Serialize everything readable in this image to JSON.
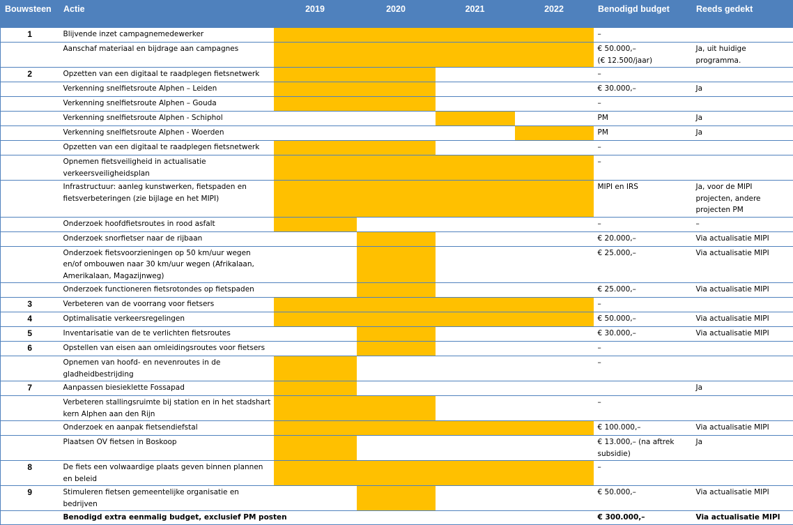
{
  "colors": {
    "header_bg": "#4f81bd",
    "bar_fill": "#ffc000",
    "rule": "#4f81bd"
  },
  "header": {
    "bouwsteen": "Bouwsteen",
    "actie": "Actie",
    "years": [
      "2019",
      "2020",
      "2021",
      "2022"
    ],
    "budget": "Benodigd budget",
    "gedekt": "Reeds gedekt"
  },
  "rows": [
    {
      "bouwsteen": "1",
      "actie": "Blijvende inzet campagnemedewerker",
      "bar_years": [
        true,
        true,
        true,
        true
      ],
      "budget": "–",
      "gedekt": ""
    },
    {
      "bouwsteen": "",
      "actie": "Aanschaf materiaal en bijdrage aan campagnes",
      "bar_years": [
        true,
        true,
        true,
        true
      ],
      "budget": "€ 50.000,–\n(€ 12.500/jaar)",
      "gedekt": "Ja, uit huidige programma."
    },
    {
      "bouwsteen": "2",
      "actie": "Opzetten van een digitaal te raadplegen fietsnetwerk",
      "bar_years": [
        true,
        true,
        false,
        false
      ],
      "budget": "–",
      "gedekt": ""
    },
    {
      "bouwsteen": "",
      "actie": "Verkenning snelfietsroute Alphen – Leiden",
      "bar_years": [
        true,
        true,
        false,
        false
      ],
      "budget": "€ 30.000,–",
      "gedekt": "Ja"
    },
    {
      "bouwsteen": "",
      "actie": "Verkenning snelfietsroute Alphen – Gouda",
      "bar_years": [
        true,
        true,
        false,
        false
      ],
      "budget": "–",
      "gedekt": ""
    },
    {
      "bouwsteen": "",
      "actie": "Verkenning snelfietsroute Alphen - Schiphol",
      "bar_years": [
        false,
        false,
        true,
        false
      ],
      "budget": "PM",
      "gedekt": "Ja"
    },
    {
      "bouwsteen": "",
      "actie": "Verkenning snelfietsroute Alphen - Woerden",
      "bar_years": [
        false,
        false,
        false,
        true
      ],
      "budget": "PM",
      "gedekt": "Ja"
    },
    {
      "bouwsteen": "",
      "actie": "Opzetten van een digitaal te raadplegen fietsnetwerk",
      "bar_years": [
        true,
        true,
        false,
        false
      ],
      "budget": "–",
      "gedekt": ""
    },
    {
      "bouwsteen": "",
      "actie": "Opnemen fietsveiligheid in actualisatie verkeersveiligheidsplan",
      "bar_years": [
        true,
        true,
        true,
        true
      ],
      "budget": "–",
      "gedekt": ""
    },
    {
      "bouwsteen": "",
      "actie": "Infrastructuur: aanleg kunstwerken, fietspaden en fietsverbeteringen (zie bijlage en het MIPI)",
      "bar_years": [
        true,
        true,
        true,
        true
      ],
      "budget": "MIPI en IRS",
      "gedekt": "Ja, voor de MIPI projecten, andere projecten PM"
    },
    {
      "bouwsteen": "",
      "actie": "Onderzoek hoofdfietsroutes in rood asfalt",
      "bar_years": [
        true,
        false,
        false,
        false
      ],
      "budget": "–",
      "gedekt": "–"
    },
    {
      "bouwsteen": "",
      "actie": "Onderzoek snorfietser naar de rijbaan",
      "bar_years": [
        false,
        true,
        false,
        false
      ],
      "budget": "€ 20.000,–",
      "gedekt": "Via actualisatie MIPI"
    },
    {
      "bouwsteen": "",
      "actie": "Onderzoek fietsvoorzieningen op 50 km/uur wegen en/of ombouwen naar 30 km/uur wegen (Afrikalaan, Amerikalaan, Magazijnweg)",
      "bar_years": [
        false,
        true,
        false,
        false
      ],
      "budget": "€ 25.000,–",
      "gedekt": "Via actualisatie MIPI"
    },
    {
      "bouwsteen": "",
      "actie": "Onderzoek functioneren fietsrotondes op fietspaden",
      "bar_years": [
        false,
        true,
        false,
        false
      ],
      "budget": "€ 25.000,–",
      "gedekt": "Via actualisatie MIPI"
    },
    {
      "bouwsteen": "3",
      "actie": "Verbeteren van de voorrang voor fietsers",
      "bar_years": [
        true,
        true,
        true,
        true
      ],
      "budget": "–",
      "gedekt": ""
    },
    {
      "bouwsteen": "4",
      "actie": "Optimalisatie verkeersregelingen",
      "bar_years": [
        true,
        true,
        true,
        true
      ],
      "budget": "€ 50.000,–",
      "gedekt": "Via actualisatie MIPI"
    },
    {
      "bouwsteen": "5",
      "actie": "Inventarisatie van de te verlichten fietsroutes",
      "bar_years": [
        false,
        true,
        false,
        false
      ],
      "budget": "€ 30.000,–",
      "gedekt": "Via actualisatie MIPI"
    },
    {
      "bouwsteen": "6",
      "actie": "Opstellen van eisen aan omleidingsroutes voor fietsers",
      "bar_years": [
        false,
        true,
        false,
        false
      ],
      "budget": "–",
      "gedekt": ""
    },
    {
      "bouwsteen": "",
      "actie": "Opnemen van hoofd- en nevenroutes in de gladheidbestrijding",
      "bar_years": [
        true,
        false,
        false,
        false
      ],
      "budget": "–",
      "gedekt": ""
    },
    {
      "bouwsteen": "7",
      "actie": "Aanpassen biesieklette Fossapad",
      "bar_years": [
        true,
        false,
        false,
        false
      ],
      "budget": "",
      "gedekt": "Ja"
    },
    {
      "bouwsteen": "",
      "actie": "Verbeteren stallingsruimte bij station en in het stadshart kern Alphen aan den Rijn",
      "bar_years": [
        true,
        true,
        false,
        false
      ],
      "budget": "–",
      "gedekt": ""
    },
    {
      "bouwsteen": "",
      "actie": "Onderzoek en aanpak fietsendiefstal",
      "bar_years": [
        true,
        true,
        true,
        true
      ],
      "budget": "€ 100.000,–",
      "gedekt": "Via actualisatie MIPI"
    },
    {
      "bouwsteen": "",
      "actie": "Plaatsen OV fietsen in Boskoop",
      "bar_years": [
        true,
        false,
        false,
        false
      ],
      "budget": "€ 13.000,– (na aftrek subsidie)",
      "gedekt": "Ja"
    },
    {
      "bouwsteen": "8",
      "actie": "De fiets een volwaardige plaats geven binnen plannen en beleid",
      "bar_years": [
        true,
        true,
        true,
        true
      ],
      "budget": "–",
      "gedekt": ""
    },
    {
      "bouwsteen": "9",
      "actie": "Stimuleren fietsen gemeentelijke organisatie en bedrijven",
      "bar_years": [
        false,
        true,
        false,
        false
      ],
      "budget": "€ 50.000,–",
      "gedekt": "Via actualisatie MIPI"
    }
  ],
  "total": {
    "label": "Benodigd extra eenmalig budget, exclusief PM posten",
    "budget": "€ 300.000,–",
    "gedekt": "Via actualisatie MIPI"
  }
}
